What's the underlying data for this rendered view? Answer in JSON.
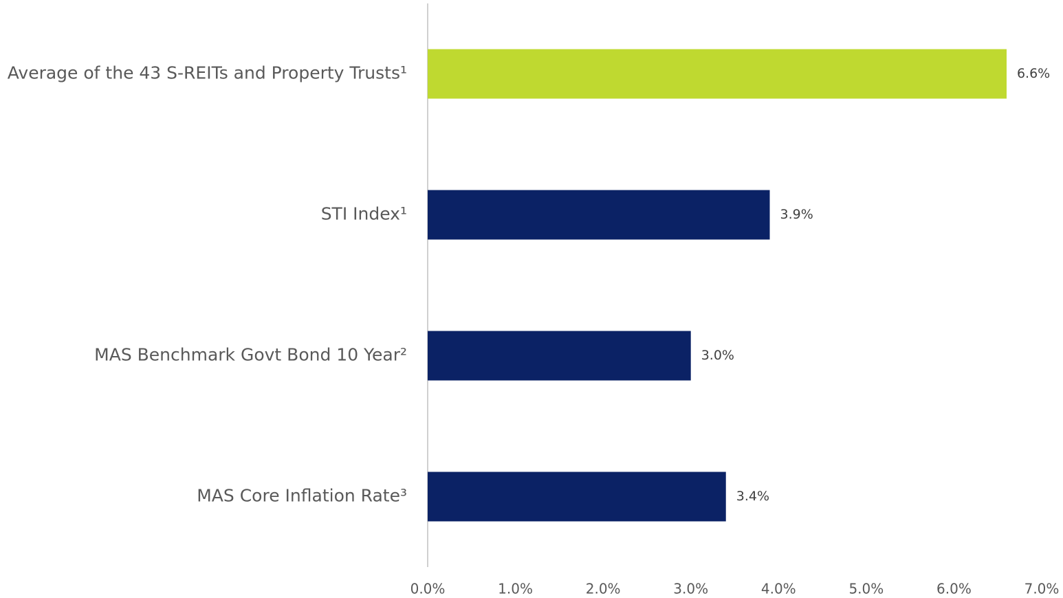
{
  "chart_data": {
    "type": "barh",
    "categories": [
      "Average of the 43 S-REITs and Property Trusts¹",
      "STI Index¹",
      "MAS Benchmark Govt Bond 10 Year²",
      "MAS Core Inflation Rate³"
    ],
    "values": [
      6.6,
      3.9,
      3.0,
      3.4
    ],
    "value_labels": [
      "6.6%",
      "3.9%",
      "3.0%",
      "3.4%"
    ],
    "colors": [
      "#bfd930",
      "#0b2265",
      "#0b2265",
      "#0b2265"
    ],
    "xlim": [
      0,
      7
    ],
    "xticks": [
      {
        "value": 0,
        "label": "0.0%"
      },
      {
        "value": 1,
        "label": "1.0%"
      },
      {
        "value": 2,
        "label": "2.0%"
      },
      {
        "value": 3,
        "label": "3.0%"
      },
      {
        "value": 4,
        "label": "4.0%"
      },
      {
        "value": 5,
        "label": "5.0%"
      },
      {
        "value": 6,
        "label": "6.0%"
      },
      {
        "value": 7,
        "label": "7.0%"
      }
    ],
    "grid": false
  }
}
